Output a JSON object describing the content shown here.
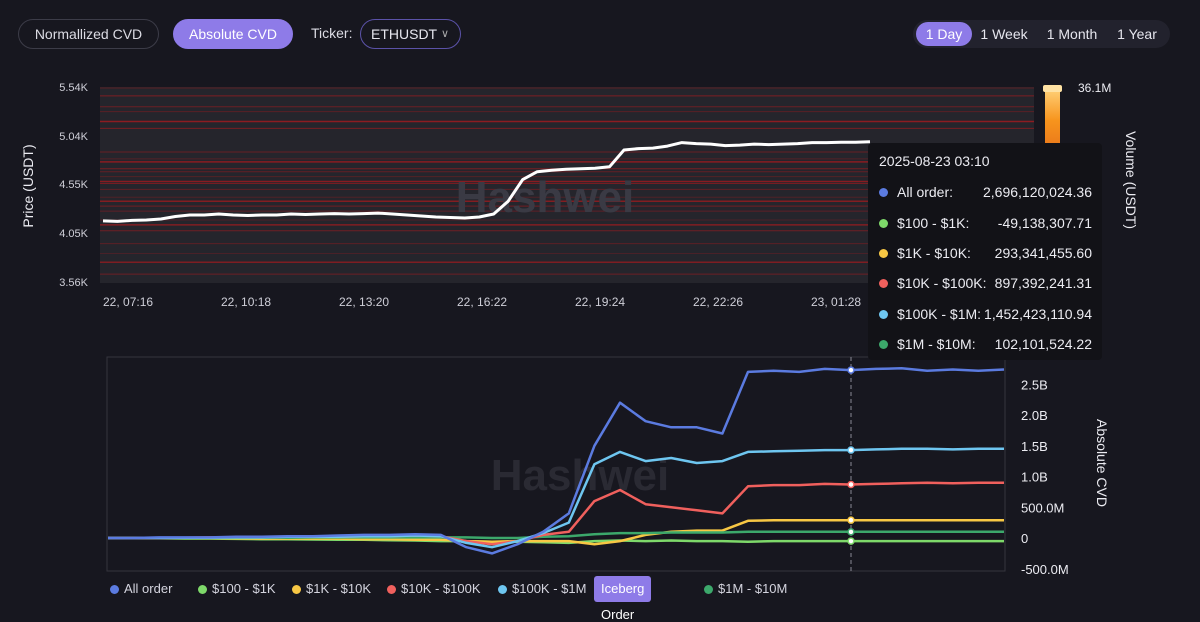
{
  "toolbar": {
    "normalized_label": "Normallized CVD",
    "absolute_label": "Absolute CVD",
    "ticker_label": "Ticker:",
    "ticker_value": "ETHUSDT",
    "ranges": [
      "1 Day",
      "1 Week",
      "1 Month",
      "1 Year"
    ],
    "active_range": "1 Day"
  },
  "watermark": "Hashwei",
  "tooltip": {
    "time": "2025-08-23 03:10",
    "rows": [
      {
        "name": "All order:",
        "value": "2,696,120,024.36",
        "color": "#5b7be0"
      },
      {
        "name": "$100 - $1K:",
        "value": "-49,138,307.71",
        "color": "#7ed96a"
      },
      {
        "name": "$1K - $10K:",
        "value": "293,341,455.60",
        "color": "#f7c744"
      },
      {
        "name": "$10K - $100K:",
        "value": "897,392,241.31",
        "color": "#f0605d"
      },
      {
        "name": "$100K - $1M:",
        "value": "1,452,423,110.94",
        "color": "#6ec6f0"
      },
      {
        "name": "$1M - $10M:",
        "value": "102,101,524.22",
        "color": "#3ca86b"
      }
    ]
  },
  "legend": {
    "items": [
      {
        "name": "All order",
        "color": "#5b7be0"
      },
      {
        "name": "$100 - $1K",
        "color": "#7ed96a"
      },
      {
        "name": "$1K - $10K",
        "color": "#f7c744"
      },
      {
        "name": "$10K - $100K",
        "color": "#f0605d"
      },
      {
        "name": "$100K - $1M",
        "color": "#6ec6f0"
      }
    ],
    "badge": "Iceberg Order",
    "last": {
      "name": "$1M - $10M",
      "color": "#3ca86b"
    }
  },
  "chart_data": [
    {
      "type": "line",
      "ylabel": "Price (USDT)",
      "y2label": "Volume (USDT)",
      "yticks": [
        "5.54K",
        "5.04K",
        "4.55K",
        "4.05K",
        "3.56K"
      ],
      "ylim": [
        3560,
        5540
      ],
      "xticks": [
        "22, 07:16",
        "22, 10:18",
        "22, 13:20",
        "22, 16:22",
        "22, 19:24",
        "22, 22:26",
        "23, 01:28"
      ],
      "volume_max_label": "36.1M",
      "heatmap_levels": [
        5530,
        5450,
        5340,
        5290,
        5190,
        5120,
        4880,
        4810,
        4780,
        4710,
        4680,
        4630,
        4580,
        4560,
        4500,
        4420,
        4380,
        4330,
        4280,
        4190,
        4140,
        4080,
        3950,
        3850,
        3760,
        3640
      ],
      "series": [
        {
          "values": [
            4180,
            4175,
            4185,
            4190,
            4200,
            4225,
            4240,
            4240,
            4250,
            4240,
            4235,
            4240,
            4240,
            4250,
            4245,
            4250,
            4255,
            4250,
            4255,
            4260,
            4250,
            4240,
            4230,
            4220,
            4215,
            4210,
            4220,
            4250,
            4380,
            4600,
            4680,
            4695,
            4705,
            4710,
            4715,
            4730,
            4900,
            4915,
            4920,
            4940,
            4975,
            4965,
            4960,
            4945,
            4950,
            4960,
            4955,
            4960,
            4965,
            4975,
            4975,
            4980,
            4980,
            4985
          ]
        }
      ]
    },
    {
      "type": "line",
      "ylabel": "Absolute CVD",
      "yticks": [
        "2.5B",
        "2.0B",
        "1.5B",
        "1.0B",
        "500.0M",
        "0",
        "-500.0M"
      ],
      "ylim": [
        -500000000,
        2500000000
      ],
      "series": [
        {
          "name": "All order",
          "values": [
            0,
            0,
            0.01,
            0.01,
            0.01,
            0.02,
            0.02,
            0.03,
            0.03,
            0.04,
            0.05,
            0.05,
            0.06,
            0.05,
            -0.15,
            -0.25,
            -0.1,
            0.1,
            0.4,
            1.5,
            2.2,
            1.9,
            1.8,
            1.8,
            1.7,
            2.7,
            2.72,
            2.7,
            2.75,
            2.73,
            2.75,
            2.76,
            2.72,
            2.74,
            2.72,
            2.74
          ]
        },
        {
          "name": "$100 - $1K",
          "values": [
            0,
            0,
            -0.005,
            -0.01,
            -0.01,
            -0.015,
            -0.02,
            -0.02,
            -0.025,
            -0.03,
            -0.03,
            -0.035,
            -0.04,
            -0.05,
            -0.05,
            -0.06,
            -0.06,
            -0.07,
            -0.08,
            -0.05,
            -0.04,
            -0.05,
            -0.04,
            -0.05,
            -0.05,
            -0.06,
            -0.05,
            -0.05,
            -0.05,
            -0.05,
            -0.05,
            -0.05,
            -0.05,
            -0.05,
            -0.05,
            -0.05
          ]
        },
        {
          "name": "$1K - $10K",
          "values": [
            0,
            0,
            0,
            0,
            -0.005,
            -0.005,
            -0.01,
            -0.01,
            -0.01,
            -0.01,
            -0.02,
            -0.02,
            -0.03,
            -0.03,
            -0.05,
            -0.06,
            -0.05,
            -0.05,
            -0.05,
            -0.1,
            -0.05,
            0.05,
            0.1,
            0.12,
            0.12,
            0.28,
            0.29,
            0.29,
            0.29,
            0.29,
            0.29,
            0.29,
            0.29,
            0.29,
            0.29,
            0.29
          ]
        },
        {
          "name": "$10K - $100K",
          "values": [
            0,
            0,
            0,
            0.005,
            0.01,
            0.01,
            0.01,
            0.02,
            0.02,
            0.02,
            0.03,
            0.03,
            0.04,
            0.03,
            -0.05,
            -0.1,
            -0.05,
            0.05,
            0.1,
            0.6,
            0.78,
            0.55,
            0.5,
            0.45,
            0.4,
            0.84,
            0.86,
            0.86,
            0.88,
            0.87,
            0.88,
            0.89,
            0.9,
            0.89,
            0.9,
            0.9
          ]
        },
        {
          "name": "$100K - $1M",
          "values": [
            0,
            0,
            0,
            0.005,
            0.005,
            0.01,
            0.01,
            0.02,
            0.02,
            0.02,
            0.03,
            0.03,
            0.04,
            0.03,
            -0.08,
            -0.15,
            -0.05,
            0.08,
            0.25,
            1.2,
            1.4,
            1.25,
            1.3,
            1.22,
            1.25,
            1.4,
            1.41,
            1.42,
            1.43,
            1.43,
            1.44,
            1.45,
            1.45,
            1.44,
            1.45,
            1.45
          ]
        },
        {
          "name": "$1M - $10M",
          "values": [
            0,
            0,
            0,
            0,
            0,
            0.005,
            0.005,
            0.005,
            0.01,
            0.01,
            0.01,
            0.01,
            0.01,
            0.01,
            0.01,
            0.0,
            0.0,
            0.02,
            0.03,
            0.06,
            0.08,
            0.08,
            0.09,
            0.09,
            0.09,
            0.1,
            0.1,
            0.1,
            0.1,
            0.1,
            0.1,
            0.1,
            0.1,
            0.1,
            0.1,
            0.1
          ]
        }
      ]
    }
  ]
}
